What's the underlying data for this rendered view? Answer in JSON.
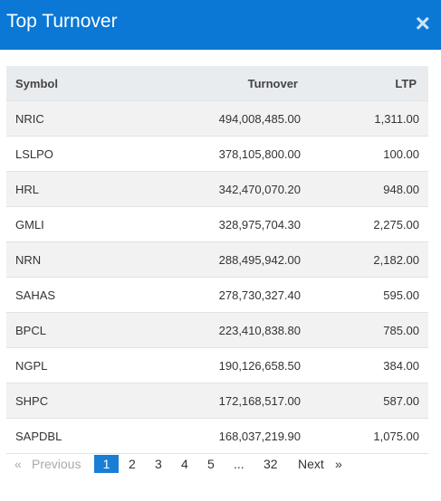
{
  "header": {
    "title": "Top Turnover",
    "close": "×"
  },
  "table": {
    "columns": [
      "Symbol",
      "Turnover",
      "LTP"
    ],
    "rows": [
      [
        "NRIC",
        "494,008,485.00",
        "1,311.00"
      ],
      [
        "LSLPO",
        "378,105,800.00",
        "100.00"
      ],
      [
        "HRL",
        "342,470,070.20",
        "948.00"
      ],
      [
        "GMLI",
        "328,975,704.30",
        "2,275.00"
      ],
      [
        "NRN",
        "288,495,942.00",
        "2,182.00"
      ],
      [
        "SAHAS",
        "278,730,327.40",
        "595.00"
      ],
      [
        "BPCL",
        "223,410,838.80",
        "785.00"
      ],
      [
        "NGPL",
        "190,126,658.50",
        "384.00"
      ],
      [
        "SHPC",
        "172,168,517.00",
        "587.00"
      ],
      [
        "SAPDBL",
        "168,037,219.90",
        "1,075.00"
      ]
    ]
  },
  "pagination": {
    "prev_arrow": "«",
    "previous": "Previous",
    "pages": [
      "1",
      "2",
      "3",
      "4",
      "5",
      "...",
      "32"
    ],
    "active": 0,
    "next": "Next",
    "next_arrow": "»"
  }
}
